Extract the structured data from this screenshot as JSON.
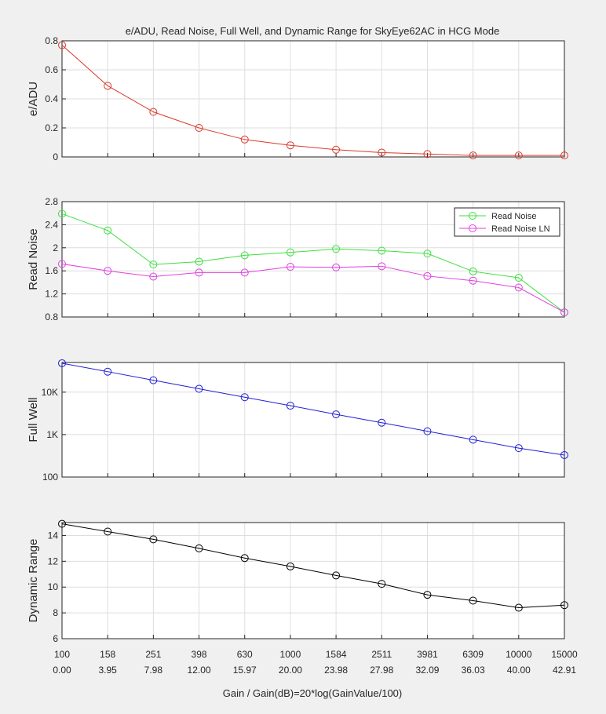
{
  "figure": {
    "title": "e/ADU, Read Noise, Full Well, and Dynamic Range for SkyEye62AC in HCG Mode",
    "xlabel": "Gain / Gain(dB)=20*log(GainValue/100)",
    "colors": {
      "background": "#f0f0f0",
      "axes": "#ffffff",
      "grid": "#dedede",
      "text": "#262626"
    }
  },
  "chart_data": [
    {
      "type": "line",
      "ylabel": "e/ADU",
      "x_tick_labels": [
        "100",
        "158",
        "251",
        "398",
        "630",
        "1000",
        "1584",
        "2511",
        "3981",
        "6309",
        "10000",
        "15000"
      ],
      "x_tick_labels_db": [
        "0.00",
        "3.95",
        "7.98",
        "12.00",
        "15.97",
        "20.00",
        "23.98",
        "27.98",
        "32.09",
        "36.03",
        "40.00",
        "42.91"
      ],
      "ylim": [
        0,
        0.8
      ],
      "yticks": [
        0,
        0.2,
        0.4,
        0.6,
        0.8
      ],
      "ytick_labels": [
        "0",
        "0.2",
        "0.4",
        "0.6",
        "0.8"
      ],
      "grid": true,
      "series": [
        {
          "color": "#d93a2b",
          "values": [
            0.77,
            0.49,
            0.31,
            0.2,
            0.12,
            0.08,
            0.05,
            0.03,
            0.02,
            0.01,
            0.01,
            0.01
          ]
        }
      ]
    },
    {
      "type": "line",
      "ylabel": "Read Noise",
      "ylim": [
        0.8,
        2.8
      ],
      "yticks": [
        0.8,
        1.2,
        1.6,
        2.0,
        2.4,
        2.8
      ],
      "ytick_labels": [
        "0.8",
        "1.2",
        "1.6",
        "2",
        "2.4",
        "2.8"
      ],
      "grid": true,
      "legend_position": "top-right",
      "series": [
        {
          "name": "Read Noise",
          "color": "#3de03d",
          "values": [
            2.59,
            2.3,
            1.71,
            1.76,
            1.87,
            1.92,
            1.98,
            1.95,
            1.9,
            1.59,
            1.48,
            0.88
          ]
        },
        {
          "name": "Read Noise LN",
          "color": "#e040e0",
          "values": [
            1.72,
            1.6,
            1.5,
            1.57,
            1.57,
            1.67,
            1.66,
            1.68,
            1.51,
            1.43,
            1.31,
            0.88
          ]
        }
      ]
    },
    {
      "type": "line",
      "ylabel": "Full Well",
      "yscale": "log",
      "ylim": [
        100,
        50000
      ],
      "yticks": [
        100,
        1000,
        10000
      ],
      "ytick_labels": [
        "100",
        "1K",
        "10K"
      ],
      "grid": true,
      "series": [
        {
          "color": "#1f1fd6",
          "values": [
            48000,
            30400,
            19100,
            12000,
            7600,
            4800,
            3000,
            1910,
            1200,
            760,
            480,
            330
          ]
        }
      ]
    },
    {
      "type": "line",
      "ylabel": "Dynamic Range",
      "ylim": [
        6,
        15
      ],
      "yticks": [
        6,
        8,
        10,
        12,
        14
      ],
      "ytick_labels": [
        "6",
        "8",
        "10",
        "12",
        "14"
      ],
      "grid": true,
      "series": [
        {
          "color": "#000000",
          "values": [
            14.9,
            14.3,
            13.7,
            13.0,
            12.25,
            11.6,
            10.9,
            10.25,
            9.4,
            8.95,
            8.4,
            8.6
          ]
        }
      ]
    }
  ]
}
